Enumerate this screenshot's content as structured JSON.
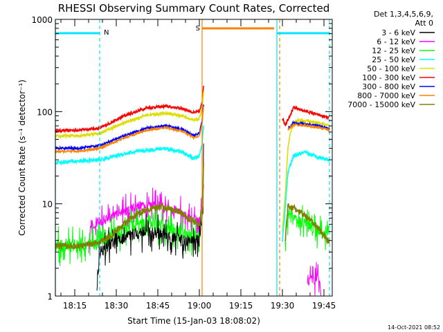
{
  "chart_data": {
    "type": "line",
    "title": "RHESSI Observing Summary Count Rates, Corrected",
    "xlabel": "Start Time (15-Jan-03 18:08:02)",
    "ylabel": "Corrected Count Rate (s⁻¹ detector⁻¹)",
    "yscale": "log",
    "ylim": [
      1,
      1000
    ],
    "xlim_minutes": [
      0,
      100
    ],
    "x_tick_labels": [
      "18:15",
      "18:30",
      "18:45",
      "19:00",
      "19:15",
      "19:30",
      "19:45"
    ],
    "x_tick_minutes": [
      7,
      22,
      37,
      52,
      67,
      82,
      97
    ],
    "y_tick_labels": [
      "1",
      "10",
      "100",
      "1000"
    ],
    "y_tick_values": [
      1,
      10,
      100,
      1000
    ],
    "legend": {
      "header": [
        "Det 1,3,4,5,6,9,",
        "Att 0"
      ],
      "entries": [
        {
          "label": "3 - 6 keV",
          "color": "#000000"
        },
        {
          "label": "6 - 12 keV",
          "color": "#ff00ff"
        },
        {
          "label": "12 - 25 keV",
          "color": "#00ff00"
        },
        {
          "label": "25 - 50 keV",
          "color": "#00ffff"
        },
        {
          "label": "50 - 100 keV",
          "color": "#dddd00"
        },
        {
          "label": "100 - 300 keV",
          "color": "#ff0000"
        },
        {
          "label": "300 - 800 keV",
          "color": "#0000ff"
        },
        {
          "label": "800 - 7000 keV",
          "color": "#ff8000"
        },
        {
          "label": "7000 - 15000 keV",
          "color": "#808000"
        }
      ]
    },
    "annotations": {
      "night_label": "N",
      "saa_label": "S",
      "night_bars": [
        [
          0,
          16
        ],
        [
          80,
          99
        ]
      ],
      "saa_bar": [
        53,
        79
      ],
      "night_lines": [
        [
          0,
          "solid"
        ],
        [
          16,
          "dashed"
        ],
        [
          80,
          "solid"
        ],
        [
          99,
          "dashed"
        ]
      ],
      "saa_lines": [
        [
          53,
          "solid"
        ],
        [
          81,
          "dashed"
        ]
      ]
    },
    "series": [
      {
        "name": "100 - 300 keV",
        "color": "#ff0000",
        "noise": 0.035,
        "segments": [
          [
            [
              0,
              62
            ],
            [
              8,
              63
            ],
            [
              16,
              66
            ],
            [
              25,
              90
            ],
            [
              33,
              110
            ],
            [
              40,
              114
            ],
            [
              46,
              108
            ],
            [
              50,
              97
            ],
            [
              52,
              100
            ],
            [
              53,
              125
            ],
            [
              53.6,
              210
            ]
          ],
          [
            [
              82,
              85
            ],
            [
              83,
              72
            ],
            [
              84,
              82
            ],
            [
              86,
              110
            ],
            [
              90,
              102
            ],
            [
              95,
              92
            ],
            [
              99,
              85
            ]
          ]
        ]
      },
      {
        "name": "50 - 100 keV",
        "color": "#dddd00",
        "noise": 0.035,
        "segments": [
          [
            [
              0,
              54
            ],
            [
              8,
              55
            ],
            [
              16,
              58
            ],
            [
              25,
              76
            ],
            [
              33,
              92
            ],
            [
              40,
              96
            ],
            [
              46,
              90
            ],
            [
              50,
              80
            ],
            [
              52,
              83
            ],
            [
              53,
              110
            ],
            [
              53.6,
              170
            ]
          ],
          [
            [
              82,
              5
            ],
            [
              83,
              12
            ],
            [
              84,
              40
            ],
            [
              85,
              62
            ],
            [
              87,
              80
            ],
            [
              90,
              80
            ],
            [
              95,
              75
            ],
            [
              99,
              70
            ]
          ]
        ]
      },
      {
        "name": "300 - 800 keV",
        "color": "#0000ff",
        "noise": 0.03,
        "segments": [
          [
            [
              0,
              40
            ],
            [
              8,
              40
            ],
            [
              16,
              43
            ],
            [
              25,
              55
            ],
            [
              33,
              66
            ],
            [
              40,
              70
            ],
            [
              46,
              64
            ],
            [
              50,
              55
            ],
            [
              52,
              58
            ],
            [
              53,
              80
            ],
            [
              53.6,
              130
            ]
          ],
          [
            [
              84,
              65
            ],
            [
              86,
              75
            ],
            [
              90,
              74
            ],
            [
              95,
              70
            ],
            [
              99,
              65
            ]
          ]
        ]
      },
      {
        "name": "800 - 7000 keV",
        "color": "#ff8000",
        "noise": 0.025,
        "segments": [
          [
            [
              0,
              37
            ],
            [
              8,
              37
            ],
            [
              16,
              40
            ],
            [
              25,
              52
            ],
            [
              33,
              63
            ],
            [
              40,
              67
            ],
            [
              46,
              61
            ],
            [
              50,
              52
            ],
            [
              52,
              54
            ],
            [
              53,
              75
            ],
            [
              53.6,
              120
            ]
          ],
          [
            [
              84,
              63
            ],
            [
              86,
              72
            ],
            [
              90,
              71
            ],
            [
              95,
              67
            ],
            [
              99,
              63
            ]
          ]
        ]
      },
      {
        "name": "25 - 50 keV",
        "color": "#00ffff",
        "noise": 0.05,
        "segments": [
          [
            [
              0,
              28
            ],
            [
              8,
              29
            ],
            [
              16,
              30
            ],
            [
              25,
              35
            ],
            [
              33,
              38
            ],
            [
              40,
              40
            ],
            [
              46,
              36
            ],
            [
              50,
              31
            ],
            [
              52,
              33
            ],
            [
              53,
              45
            ],
            [
              53.6,
              75
            ]
          ],
          [
            [
              82,
              4
            ],
            [
              83,
              9
            ],
            [
              84,
              22
            ],
            [
              86,
              33
            ],
            [
              90,
              36
            ],
            [
              95,
              32
            ],
            [
              99,
              30
            ]
          ]
        ]
      },
      {
        "name": "6 - 12 keV",
        "color": "#ff00ff",
        "noise": 0.13,
        "segments": [
          [
            [
              12,
              4
            ],
            [
              12.6,
              6
            ],
            [
              16,
              6.5
            ],
            [
              22,
              7.5
            ],
            [
              30,
              9.5
            ],
            [
              38,
              9.5
            ],
            [
              44,
              8.5
            ],
            [
              48,
              7
            ],
            [
              52,
              6.5
            ],
            [
              53.2,
              10
            ],
            [
              53.6,
              18
            ]
          ],
          [
            [
              91,
              1.5
            ],
            [
              95,
              1.5
            ],
            [
              96,
              1.2
            ]
          ]
        ]
      },
      {
        "name": "12 - 25 keV",
        "color": "#00ff00",
        "noise": 0.17,
        "segments": [
          [
            [
              0,
              3.6
            ],
            [
              14,
              3.6
            ],
            [
              16,
              4
            ],
            [
              22,
              5
            ],
            [
              30,
              6
            ],
            [
              38,
              6
            ],
            [
              44,
              5
            ],
            [
              48,
              4.5
            ],
            [
              52,
              4.5
            ],
            [
              53.2,
              9
            ],
            [
              53.6,
              40
            ]
          ],
          [
            [
              83,
              4
            ],
            [
              84,
              8
            ],
            [
              86,
              7
            ],
            [
              90,
              6
            ],
            [
              95,
              5
            ],
            [
              99,
              5
            ]
          ]
        ]
      },
      {
        "name": "3 - 6 keV",
        "color": "#000000",
        "noise": 0.15,
        "segments": [
          [
            [
              15,
              1.3
            ],
            [
              16,
              3
            ],
            [
              20,
              3.6
            ],
            [
              26,
              4.5
            ],
            [
              32,
              5
            ],
            [
              40,
              4.7
            ],
            [
              46,
              4
            ],
            [
              50,
              4
            ],
            [
              52,
              4
            ],
            [
              53.2,
              8
            ],
            [
              53.6,
              50
            ]
          ]
        ]
      },
      {
        "name": "7000 - 15000 keV",
        "color": "#808000",
        "noise": 0.08,
        "segments": [
          [
            [
              0,
              3.5
            ],
            [
              10,
              3.5
            ],
            [
              16,
              3.9
            ],
            [
              20,
              4.5
            ],
            [
              26,
              6.5
            ],
            [
              32,
              8.5
            ],
            [
              38,
              9.4
            ],
            [
              44,
              8.5
            ],
            [
              48,
              7
            ],
            [
              52,
              6
            ],
            [
              53.2,
              10
            ],
            [
              53.6,
              35
            ]
          ],
          [
            [
              83,
              4
            ],
            [
              84,
              9.5
            ],
            [
              86,
              9
            ],
            [
              90,
              7.5
            ],
            [
              95,
              5.5
            ],
            [
              99,
              3.8
            ]
          ]
        ]
      }
    ]
  },
  "timestamp": "14-Oct-2021 08:52"
}
